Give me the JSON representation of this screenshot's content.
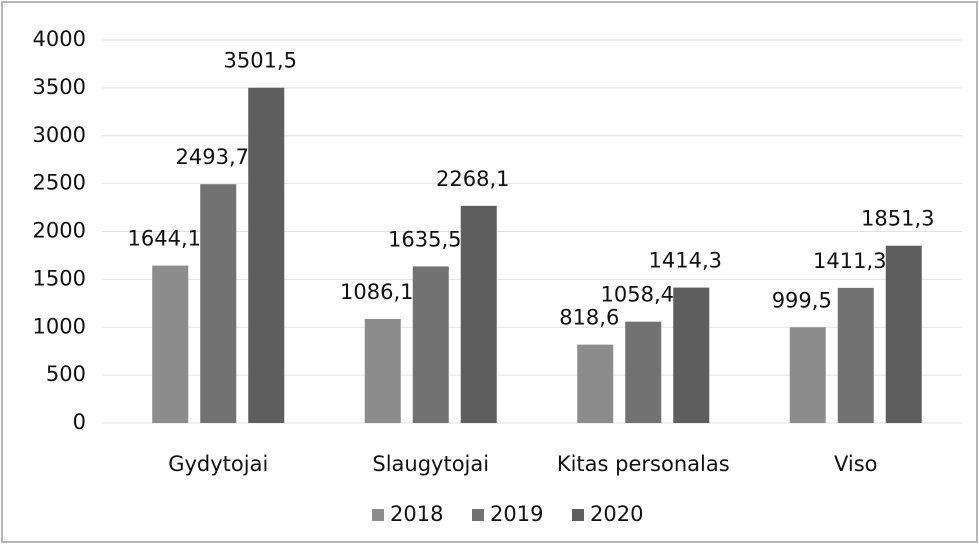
{
  "chart_data": {
    "type": "bar",
    "categories": [
      "Gydytojai",
      "Slaugytojai",
      "Kitas personalas",
      "Viso"
    ],
    "series": [
      {
        "name": "2018",
        "color": "#8c8c8c",
        "values": [
          1644.1,
          1086.1,
          818.6,
          999.5
        ],
        "value_labels": [
          "1644,1",
          "1086,1",
          "818,6",
          "999,5"
        ]
      },
      {
        "name": "2019",
        "color": "#727272",
        "values": [
          2493.7,
          1635.5,
          1058.4,
          1411.3
        ],
        "value_labels": [
          "2493,7",
          "1635,5",
          "1058,4",
          "1411,3"
        ]
      },
      {
        "name": "2020",
        "color": "#5e5e5e",
        "values": [
          3501.5,
          2268.1,
          1414.3,
          1851.3
        ],
        "value_labels": [
          "3501,5",
          "2268,1",
          "1414,3",
          "1851,3"
        ]
      }
    ],
    "ylim": [
      0,
      4000
    ],
    "yticks": [
      0,
      500,
      1000,
      1500,
      2000,
      2500,
      3000,
      3500,
      4000
    ],
    "grid": true,
    "legend": "bottom"
  }
}
